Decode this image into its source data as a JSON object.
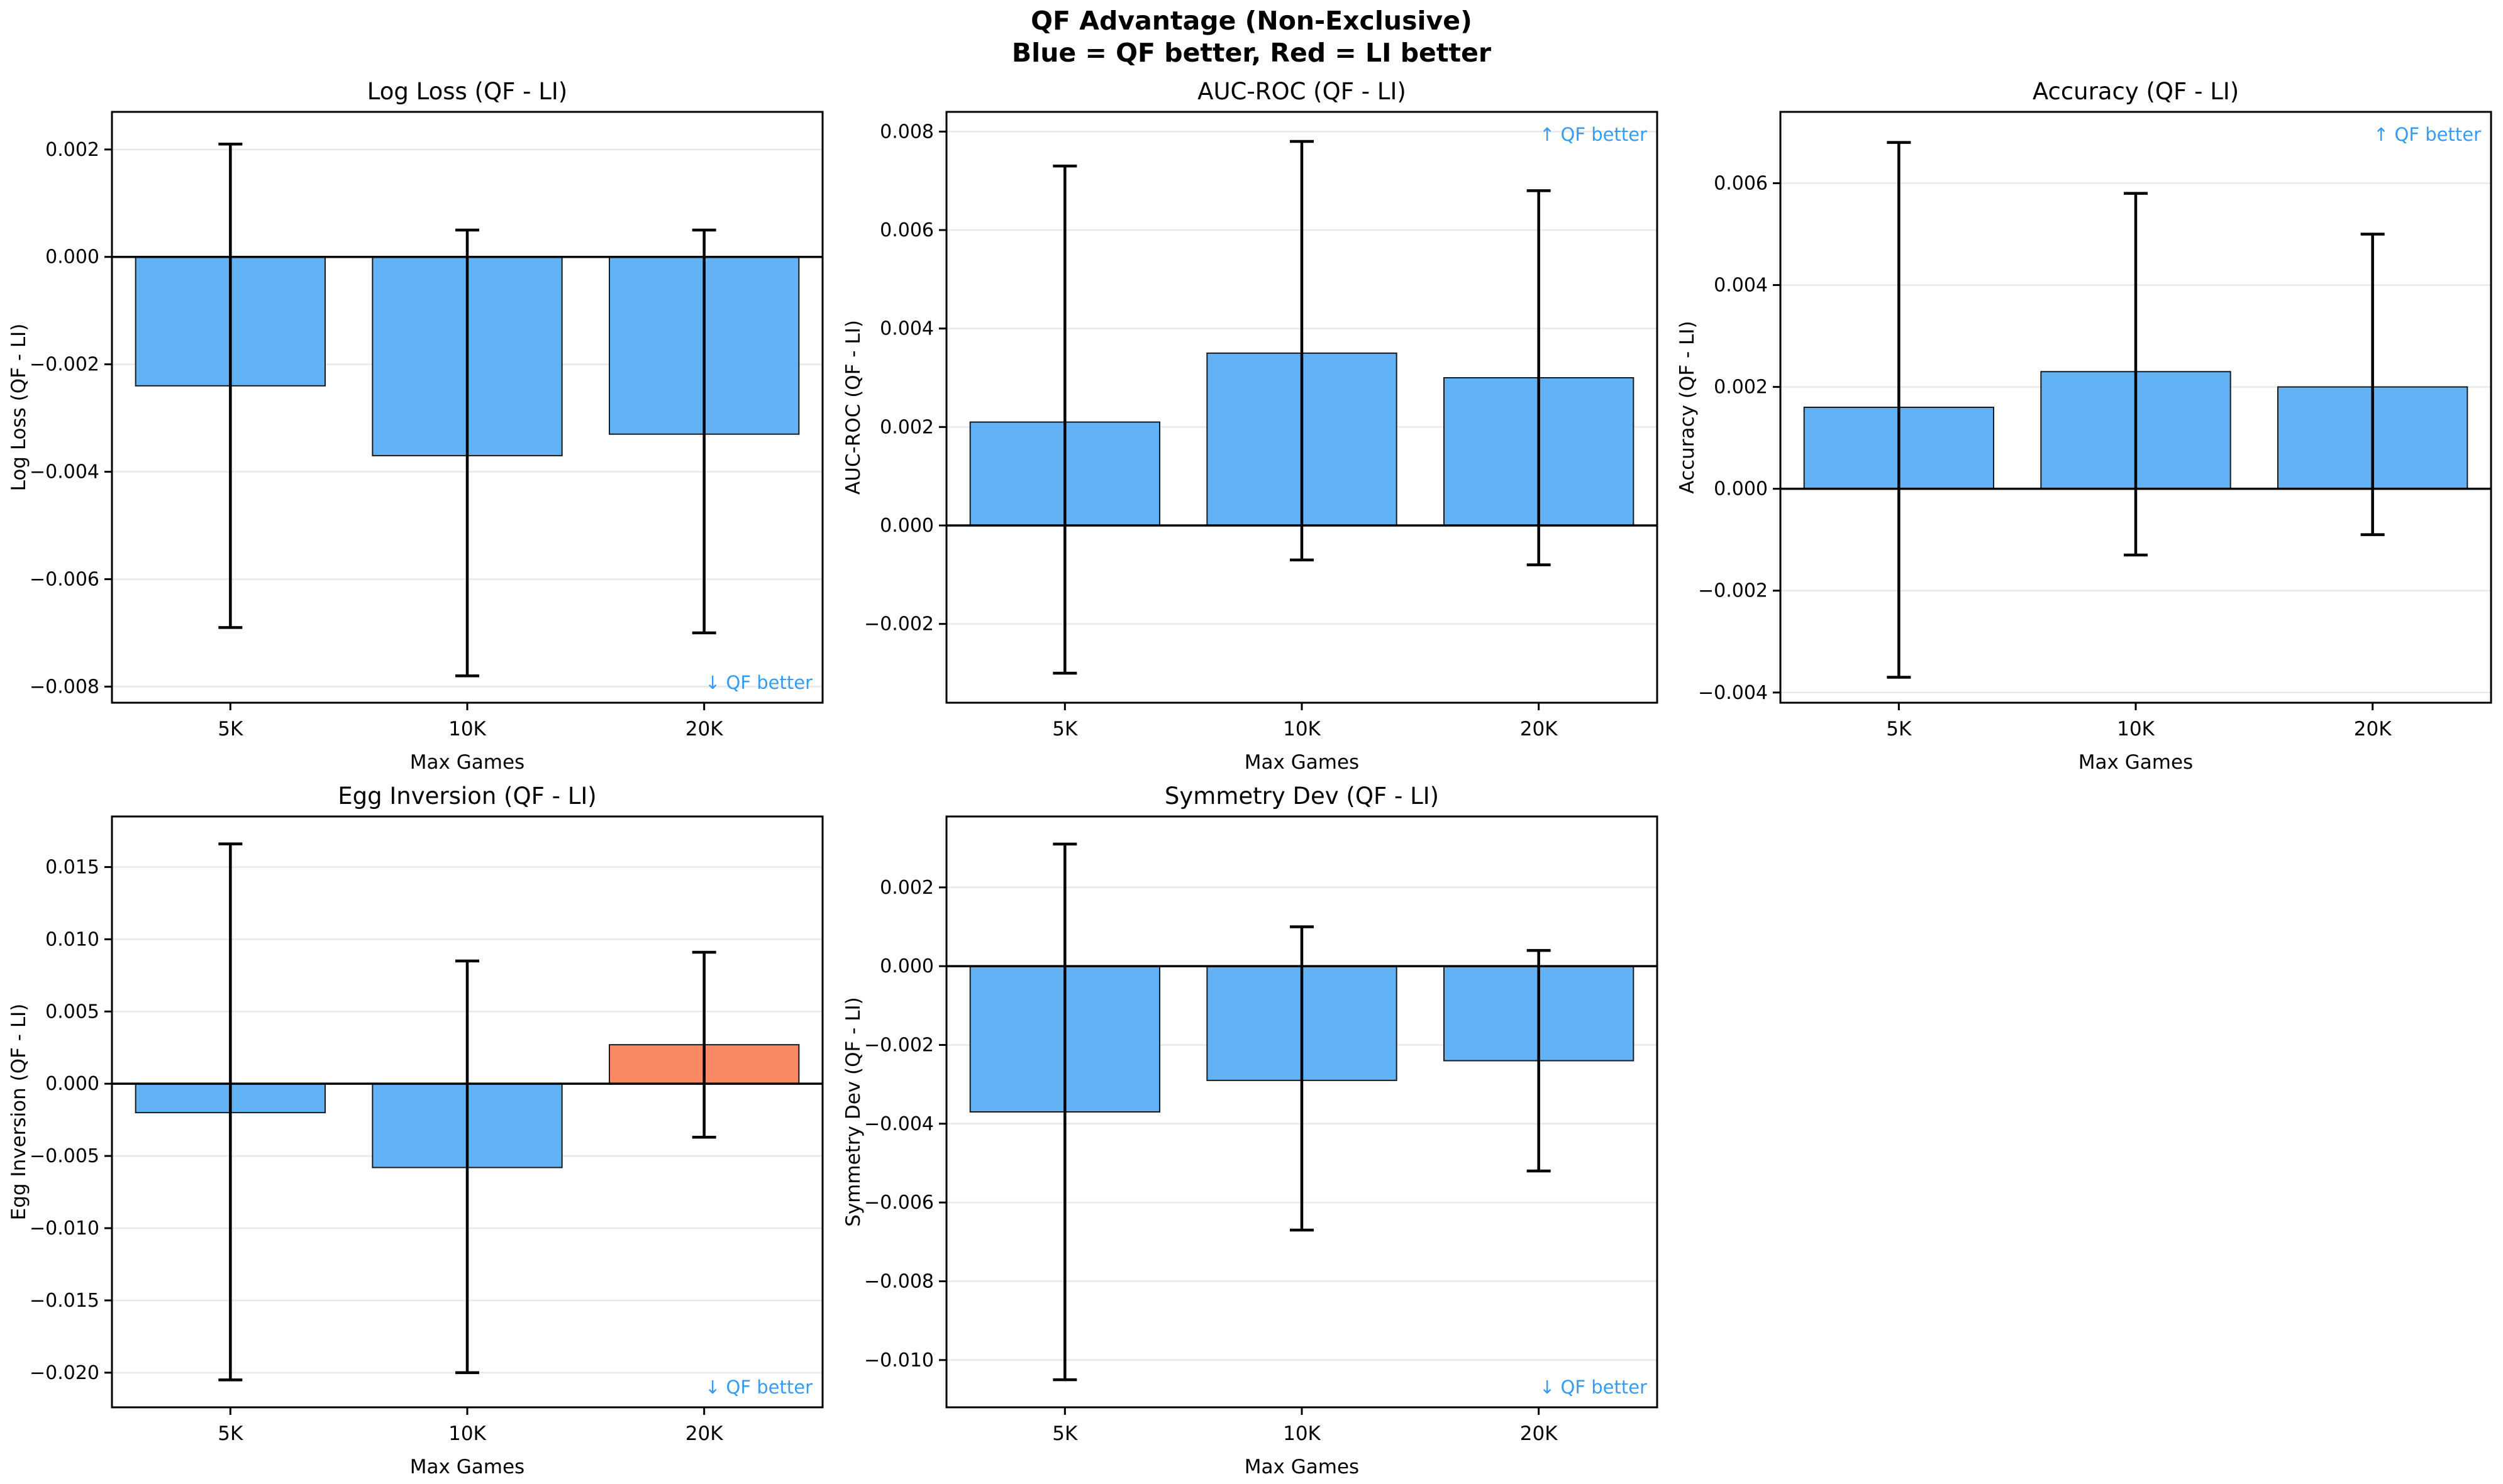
{
  "figure": {
    "title_line1": "QF Advantage (Non-Exclusive)",
    "title_line2": "Blue = QF better, Red = LI better",
    "background": "#ffffff"
  },
  "colors": {
    "qf_better_blue": "#64b2f6",
    "li_better_red": "#fa8a64",
    "annotation_blue": "#349cf4",
    "grid": "#e9e9e9",
    "axis": "#000000",
    "bar_edge": "#1a1a1a"
  },
  "chart_data": [
    {
      "type": "bar",
      "title": "Log Loss (QF - LI)",
      "xlabel": "Max Games",
      "ylabel": "Log Loss (QF - LI)",
      "categories": [
        "5K",
        "10K",
        "20K"
      ],
      "values": [
        -0.0024,
        -0.0037,
        -0.0033
      ],
      "error_high": [
        0.0021,
        0.0005,
        0.0005
      ],
      "error_low": [
        -0.0069,
        -0.0078,
        -0.007
      ],
      "bar_colors": [
        "blue",
        "blue",
        "blue"
      ],
      "yticks": [
        0.002,
        0.0,
        -0.002,
        -0.004,
        -0.006,
        -0.008
      ],
      "ylim": [
        -0.0083,
        0.0027
      ],
      "grid": true,
      "legend_position": "none",
      "annotation": "↓ QF better",
      "annotation_corner": "bottom-right"
    },
    {
      "type": "bar",
      "title": "AUC-ROC (QF - LI)",
      "xlabel": "Max Games",
      "ylabel": "AUC-ROC (QF - LI)",
      "categories": [
        "5K",
        "10K",
        "20K"
      ],
      "values": [
        0.0021,
        0.0035,
        0.003
      ],
      "error_high": [
        0.0073,
        0.0078,
        0.0068
      ],
      "error_low": [
        -0.003,
        -0.0007,
        -0.0008
      ],
      "bar_colors": [
        "blue",
        "blue",
        "blue"
      ],
      "yticks": [
        0.008,
        0.006,
        0.004,
        0.002,
        0.0,
        -0.002
      ],
      "ylim": [
        -0.0036,
        0.0084
      ],
      "grid": true,
      "legend_position": "none",
      "annotation": "↑ QF better",
      "annotation_corner": "top-right"
    },
    {
      "type": "bar",
      "title": "Accuracy (QF - LI)",
      "xlabel": "Max Games",
      "ylabel": "Accuracy (QF - LI)",
      "categories": [
        "5K",
        "10K",
        "20K"
      ],
      "values": [
        0.0016,
        0.0023,
        0.002
      ],
      "error_high": [
        0.0068,
        0.0058,
        0.005
      ],
      "error_low": [
        -0.0037,
        -0.0013,
        -0.0009
      ],
      "bar_colors": [
        "blue",
        "blue",
        "blue"
      ],
      "yticks": [
        0.006,
        0.004,
        0.002,
        0.0,
        -0.002,
        -0.004
      ],
      "ylim": [
        -0.0042,
        0.0074
      ],
      "grid": true,
      "legend_position": "none",
      "annotation": "↑ QF better",
      "annotation_corner": "top-right"
    },
    {
      "type": "bar",
      "title": "Egg Inversion (QF - LI)",
      "xlabel": "Max Games",
      "ylabel": "Egg Inversion (QF - LI)",
      "categories": [
        "5K",
        "10K",
        "20K"
      ],
      "values": [
        -0.002,
        -0.0058,
        0.0027
      ],
      "error_high": [
        0.0166,
        0.0085,
        0.0091
      ],
      "error_low": [
        -0.0205,
        -0.02,
        -0.0037
      ],
      "bar_colors": [
        "blue",
        "blue",
        "red"
      ],
      "yticks": [
        0.015,
        0.01,
        0.005,
        0.0,
        -0.005,
        -0.01,
        -0.015,
        -0.02
      ],
      "ylim": [
        -0.0224,
        0.0185
      ],
      "grid": true,
      "legend_position": "none",
      "annotation": "↓ QF better",
      "annotation_corner": "bottom-right"
    },
    {
      "type": "bar",
      "title": "Symmetry Dev (QF - LI)",
      "xlabel": "Max Games",
      "ylabel": "Symmetry Dev (QF - LI)",
      "categories": [
        "5K",
        "10K",
        "20K"
      ],
      "values": [
        -0.0037,
        -0.0029,
        -0.0024
      ],
      "error_high": [
        0.0031,
        0.001,
        0.0004
      ],
      "error_low": [
        -0.0105,
        -0.0067,
        -0.0052
      ],
      "bar_colors": [
        "blue",
        "blue",
        "blue"
      ],
      "yticks": [
        0.002,
        0.0,
        -0.002,
        -0.004,
        -0.006,
        -0.008,
        -0.01
      ],
      "ylim": [
        -0.0112,
        0.0038
      ],
      "grid": true,
      "legend_position": "none",
      "annotation": "↓ QF better",
      "annotation_corner": "bottom-right"
    }
  ]
}
